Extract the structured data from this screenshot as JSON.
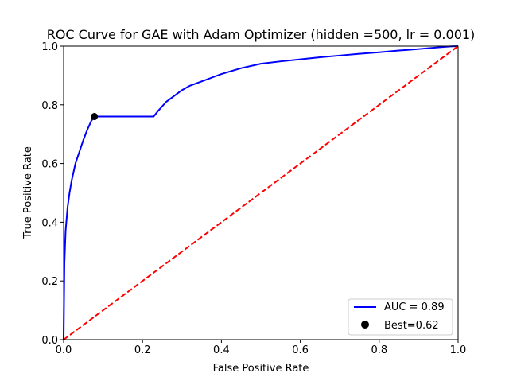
{
  "chart_data": {
    "type": "line",
    "title": "ROC Curve for GAE with Adam Optimizer (hidden =500, lr = 0.001)",
    "xlabel": "False Positive Rate",
    "ylabel": "True Positive Rate",
    "xlim": [
      0,
      1
    ],
    "ylim": [
      0,
      1
    ],
    "xticks": [
      "0.0",
      "0.2",
      "0.4",
      "0.6",
      "0.8",
      "1.0"
    ],
    "yticks": [
      "0.0",
      "0.2",
      "0.4",
      "0.6",
      "0.8",
      "1.0"
    ],
    "grid": false,
    "legend_position": "lower right",
    "series": [
      {
        "name": "AUC = 0.89",
        "color": "#0000ff",
        "style": "solid",
        "x": [
          0.0,
          0.002,
          0.005,
          0.01,
          0.015,
          0.02,
          0.03,
          0.04,
          0.05,
          0.06,
          0.07,
          0.078,
          0.1,
          0.15,
          0.2,
          0.228,
          0.24,
          0.25,
          0.26,
          0.28,
          0.3,
          0.32,
          0.35,
          0.38,
          0.4,
          0.45,
          0.5,
          0.55,
          0.6,
          0.65,
          0.7,
          0.75,
          0.8,
          0.85,
          0.9,
          0.95,
          0.98,
          1.0
        ],
        "y": [
          0.0,
          0.26,
          0.37,
          0.45,
          0.5,
          0.54,
          0.6,
          0.64,
          0.68,
          0.715,
          0.745,
          0.76,
          0.76,
          0.76,
          0.76,
          0.76,
          0.78,
          0.795,
          0.81,
          0.83,
          0.85,
          0.865,
          0.88,
          0.895,
          0.905,
          0.925,
          0.94,
          0.948,
          0.955,
          0.962,
          0.968,
          0.974,
          0.979,
          0.985,
          0.99,
          0.996,
          0.999,
          1.0
        ]
      },
      {
        "name": "",
        "color": "#ff0000",
        "style": "dashed",
        "x": [
          0,
          1
        ],
        "y": [
          0,
          1
        ]
      }
    ],
    "points": [
      {
        "name": "Best=0.62",
        "x": 0.078,
        "y": 0.76,
        "color": "#000000"
      }
    ]
  }
}
